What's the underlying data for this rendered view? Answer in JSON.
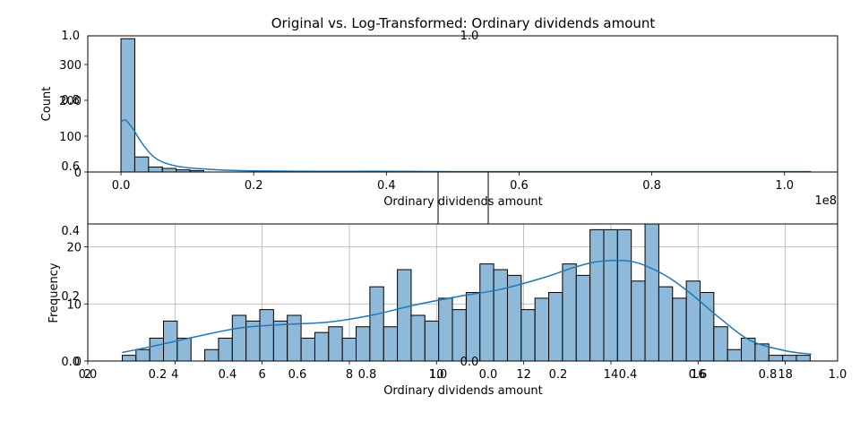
{
  "colors": {
    "bar_fill": "#8fb9d9",
    "kde_line": "#1f77b4",
    "grid": "#b0b0b0",
    "frame": "#000000"
  },
  "chart_data": [
    {
      "type": "bar",
      "title": "Original vs. Log-Transformed: Ordinary dividends amount",
      "xlabel": "Ordinary dividends amount",
      "ylabel": "Count",
      "x_offset_label": "1e8",
      "xlim": [
        -0.05,
        1.08
      ],
      "ylim": [
        0,
        380
      ],
      "xticks": [
        0.0,
        0.2,
        0.4,
        0.6,
        0.8,
        1.0
      ],
      "xtick_labels": [
        "0.0",
        "0.2",
        "0.4",
        "0.6",
        "0.8",
        "1.0"
      ],
      "yticks": [
        0,
        100,
        200,
        300
      ],
      "ytick_labels": [
        "0",
        "100",
        "200",
        "300"
      ],
      "grid": false,
      "bin_edges": [
        0.0,
        0.0208,
        0.0416,
        0.0624,
        0.0832,
        0.104,
        0.1248
      ],
      "values": [
        372,
        42,
        14,
        10,
        6,
        4
      ],
      "kde": {
        "x": [
          0.0,
          0.005,
          0.01,
          0.02,
          0.03,
          0.045,
          0.06,
          0.08,
          0.1,
          0.13,
          0.16,
          0.2,
          0.3,
          0.4,
          0.5,
          0.6,
          0.8,
          1.04
        ],
        "y": [
          140,
          145,
          140,
          115,
          85,
          50,
          30,
          18,
          12,
          8,
          5,
          3,
          2,
          2,
          1,
          1,
          1,
          1
        ]
      },
      "overlay_ticks": {
        "left": [
          "1.0",
          "0.8",
          "0.6"
        ],
        "top": [
          "1.0"
        ]
      }
    },
    {
      "type": "bar",
      "title": "",
      "xlabel": "Ordinary dividends amount",
      "ylabel": "Frequency",
      "xlim": [
        2,
        19.2
      ],
      "ylim": [
        0,
        24
      ],
      "xticks": [
        2,
        4,
        6,
        8,
        10,
        12,
        14,
        16,
        18
      ],
      "xtick_labels": [
        "2",
        "4",
        "6",
        "8",
        "10",
        "12",
        "14",
        "16",
        "18"
      ],
      "yticks": [
        0,
        10,
        20
      ],
      "ytick_labels": [
        "0",
        "10",
        "20"
      ],
      "grid": true,
      "bin_start": 2.79,
      "bin_width": 0.3156,
      "values": [
        1,
        2,
        4,
        7,
        4,
        0,
        2,
        4,
        8,
        7,
        9,
        7,
        8,
        4,
        5,
        6,
        4,
        6,
        13,
        6,
        16,
        8,
        7,
        11,
        9,
        12,
        17,
        16,
        15,
        9,
        11,
        12,
        17,
        15,
        23,
        23,
        23,
        14,
        24,
        13,
        11,
        14,
        12,
        6,
        2,
        4,
        3,
        1,
        1,
        1
      ],
      "kde": {
        "x": [
          2.79,
          3.5,
          4.5,
          5.5,
          6.5,
          7.5,
          8.5,
          9.5,
          10.5,
          11.5,
          12.5,
          13.2,
          13.8,
          14.5,
          15.2,
          15.8,
          16.5,
          17.2,
          18.0,
          18.6
        ],
        "y": [
          1.5,
          2.6,
          4.3,
          5.8,
          6.4,
          6.8,
          8.0,
          9.8,
          11.3,
          12.6,
          14.7,
          16.5,
          17.5,
          17.4,
          15.2,
          12.0,
          7.5,
          3.6,
          1.8,
          1.2
        ]
      },
      "overlay_ticks": {
        "left": [
          "0.4",
          "0.2",
          "0.0"
        ],
        "bottom": [
          "0.0",
          "0.2",
          "0.4",
          "0.6",
          "0.8",
          "1.0",
          "0.0",
          "0.2",
          "0.4",
          "0.6",
          "0.8",
          "1.0"
        ]
      }
    }
  ]
}
